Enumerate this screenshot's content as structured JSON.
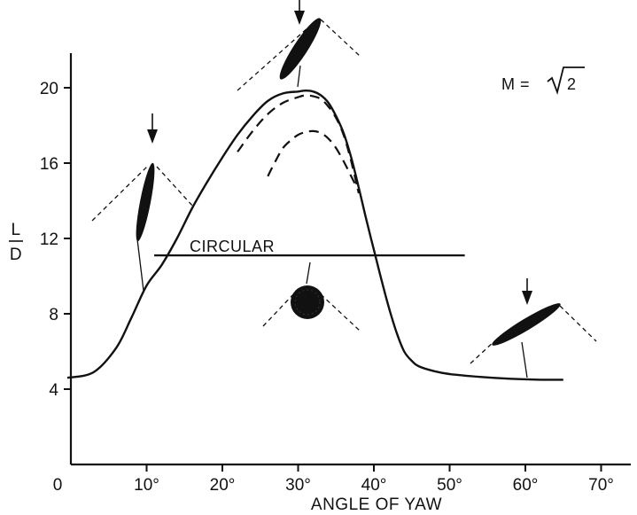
{
  "chart_data": {
    "type": "line",
    "title": "",
    "xlabel": "ANGLE OF YAW",
    "ylabel": "L/D",
    "ylabel_numerator": "L",
    "ylabel_denominator": "D",
    "xlim": [
      0,
      70
    ],
    "ylim": [
      0,
      22
    ],
    "x_ticks": [
      0,
      10,
      20,
      30,
      40,
      50,
      60,
      70
    ],
    "x_tick_labels": [
      "0",
      "10°",
      "20°",
      "30°",
      "40°",
      "50°",
      "60°",
      "70°"
    ],
    "y_ticks": [
      4,
      8,
      12,
      16,
      20
    ],
    "y_tick_labels": [
      "4",
      "8",
      "12",
      "16",
      "20"
    ],
    "grid": false,
    "series": [
      {
        "style": "solid",
        "x": [
          -1,
          3,
          6,
          8,
          10,
          12,
          14,
          16,
          18,
          20,
          22,
          24,
          26,
          28,
          30,
          31,
          32,
          33,
          34,
          35,
          36,
          37,
          38,
          39,
          40,
          41,
          42,
          43,
          44,
          45,
          46,
          48,
          50,
          54,
          58,
          62,
          65
        ],
        "y": [
          4.6,
          4.9,
          6.2,
          7.8,
          9.5,
          10.6,
          12.0,
          13.6,
          15.0,
          16.3,
          17.5,
          18.5,
          19.3,
          19.7,
          19.8,
          19.85,
          19.8,
          19.6,
          19.2,
          18.5,
          17.6,
          16.3,
          14.7,
          13.0,
          11.4,
          9.8,
          8.3,
          7.0,
          6.0,
          5.5,
          5.2,
          4.95,
          4.8,
          4.65,
          4.55,
          4.5,
          4.5
        ]
      },
      {
        "style": "dashed",
        "x": [
          22,
          24,
          26,
          28,
          30,
          31,
          32,
          33,
          34,
          35,
          36,
          37,
          38
        ],
        "y": [
          16.6,
          17.7,
          18.6,
          19.2,
          19.5,
          19.6,
          19.55,
          19.4,
          19.0,
          18.4,
          17.5,
          16.1,
          14.4
        ]
      },
      {
        "style": "dashed",
        "x": [
          26,
          27,
          28,
          29,
          30,
          31,
          32,
          33,
          34,
          35,
          36,
          37,
          38
        ],
        "y": [
          15.3,
          16.1,
          16.8,
          17.2,
          17.5,
          17.65,
          17.7,
          17.6,
          17.3,
          16.8,
          16.1,
          15.3,
          14.5
        ]
      },
      {
        "name": "CIRCULAR",
        "style": "solid",
        "x": [
          11,
          52
        ],
        "y": [
          11.1,
          11.1
        ]
      }
    ],
    "annotations": [
      "CIRCULAR",
      "M = √2"
    ],
    "annotation_mach_prefix": "M =",
    "annotation_mach_value": "2"
  }
}
